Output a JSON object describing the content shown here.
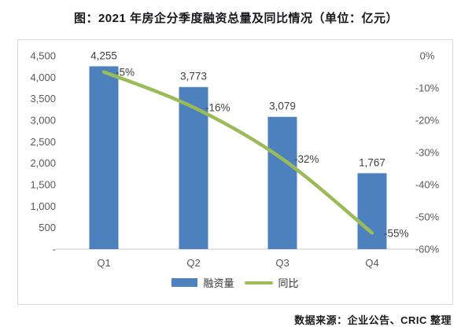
{
  "title": "图：2021 年房企分季度融资总量及同比情况（单位：亿元）",
  "source": "数据来源：企业公告、CRIC 整理",
  "legend": {
    "bar_label": "融资量",
    "line_label": "同比"
  },
  "colors": {
    "bar": "#4d81bd",
    "line": "#9bbb59",
    "axis_text": "#595959",
    "data_label_text": "#3f3f3f",
    "baseline": "#c8c8c8",
    "box_border": "#d9d9d9",
    "title_text": "#17171c"
  },
  "chart_data": {
    "type": "bar",
    "subtype": "bar-line-combo",
    "title": "图：2021 年房企分季度融资总量及同比情况（单位：亿元）",
    "categories": [
      "Q1",
      "Q2",
      "Q3",
      "Q4"
    ],
    "series": [
      {
        "name": "融资量",
        "type": "bar",
        "axis": "left",
        "values": [
          4255,
          3773,
          3079,
          1767
        ],
        "labels": [
          "4,255",
          "3,773",
          "3,079",
          "1,767"
        ]
      },
      {
        "name": "同比",
        "type": "line",
        "axis": "right",
        "values": [
          -5,
          -16,
          -32,
          -55
        ],
        "labels": [
          "-5%",
          "-16%",
          "-32%",
          "-55%"
        ]
      }
    ],
    "left_axis": {
      "min": 0,
      "max": 4500,
      "ticks": [
        "4,500",
        "4,000",
        "3,500",
        "3,000",
        "2,500",
        "2,000",
        "1,500",
        "1,000",
        "500",
        "-"
      ]
    },
    "right_axis": {
      "min": -60,
      "max": 0,
      "ticks": [
        "0%",
        "-10%",
        "-20%",
        "-30%",
        "-40%",
        "-50%",
        "-60%"
      ]
    },
    "grid": false,
    "legend_position": "bottom"
  }
}
